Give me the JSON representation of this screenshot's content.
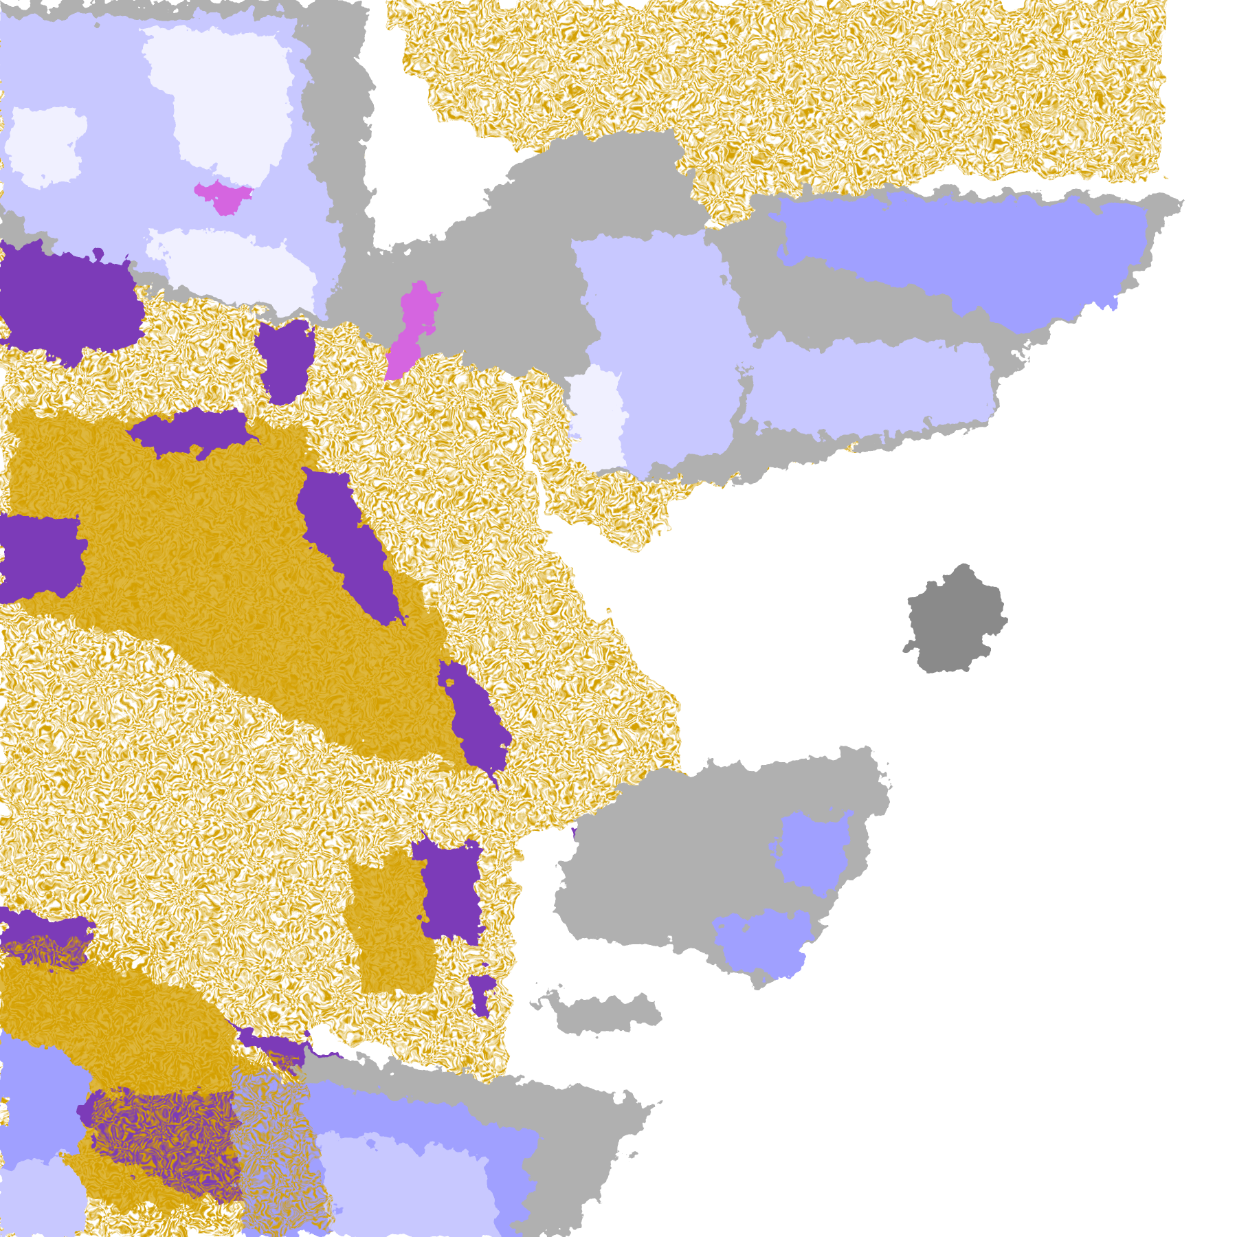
{
  "map": {
    "type": "classified cloud/surface raster",
    "background": "#ffffff",
    "palette": {
      "gold": "#d4a000",
      "purple": "#7b3bb8",
      "magenta": "#d565e0",
      "lavender_light": "#f0f0ff",
      "lavender": "#c8c8ff",
      "periwinkle": "#a0a0ff",
      "gray_light": "#b0b0b0",
      "gray_dark": "#8a8a8a"
    }
  }
}
